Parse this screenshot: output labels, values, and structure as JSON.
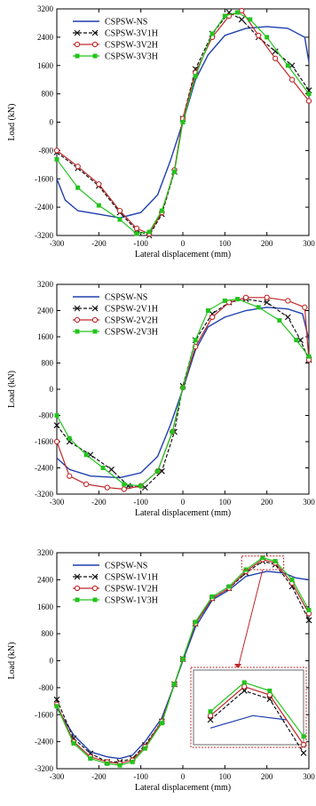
{
  "chart_data": [
    {
      "type": "line",
      "xlabel": "Lateral displacement (mm)",
      "ylabel": "Load (kN)",
      "xlim": [
        -300,
        300
      ],
      "ylim": [
        -3200,
        3200
      ],
      "xticks": [
        "-300",
        "-200",
        "-100",
        "0",
        "100",
        "200",
        "300"
      ],
      "yticks": [
        "3200",
        "2400",
        "1600",
        "800",
        "0",
        "-800",
        "-1600",
        "-2400",
        "-3200"
      ],
      "legend_position": "top-left",
      "series": [
        {
          "name": "CSPSW-NS",
          "color": "#1f3fae",
          "marker": "none",
          "x": [
            -300,
            -280,
            -250,
            -200,
            -150,
            -100,
            -60,
            -30,
            0,
            30,
            60,
            100,
            150,
            200,
            250,
            290,
            300
          ],
          "y": [
            -1600,
            -2200,
            -2500,
            -2600,
            -2700,
            -2550,
            -2050,
            -1100,
            0,
            1200,
            1900,
            2450,
            2650,
            2700,
            2650,
            2400,
            1700
          ]
        },
        {
          "name": "CSPSW-3V1H",
          "color": "#111111",
          "marker": "x",
          "x": [
            -300,
            -250,
            -200,
            -150,
            -110,
            -80,
            -50,
            -20,
            0,
            30,
            70,
            110,
            140,
            180,
            220,
            260,
            300
          ],
          "y": [
            -850,
            -1300,
            -1800,
            -2550,
            -3050,
            -3200,
            -2600,
            -1400,
            100,
            1500,
            2500,
            3100,
            2900,
            2400,
            2000,
            1600,
            900
          ]
        },
        {
          "name": "CSPSW-3V2H",
          "color": "#c0282a",
          "marker": "o",
          "x": [
            -300,
            -250,
            -200,
            -150,
            -110,
            -80,
            -50,
            -20,
            0,
            30,
            70,
            110,
            140,
            180,
            220,
            260,
            300
          ],
          "y": [
            -800,
            -1250,
            -1750,
            -2500,
            -3000,
            -3150,
            -2550,
            -1350,
            100,
            1400,
            2400,
            3000,
            3150,
            2450,
            1800,
            1200,
            600
          ]
        },
        {
          "name": "CSPSW-3V3H",
          "color": "#22c41c",
          "marker": "s",
          "x": [
            -300,
            -250,
            -200,
            -150,
            -110,
            -80,
            -50,
            -20,
            0,
            30,
            70,
            100,
            130,
            160,
            200,
            250,
            300
          ],
          "y": [
            -1050,
            -1850,
            -2350,
            -2750,
            -3150,
            -3100,
            -2500,
            -1400,
            0,
            1300,
            2500,
            3000,
            3100,
            2900,
            2400,
            1600,
            800
          ]
        }
      ]
    },
    {
      "type": "line",
      "xlabel": "Lateral displacement (mm)",
      "ylabel": "Load (kN)",
      "xlim": [
        -300,
        300
      ],
      "ylim": [
        -3200,
        3200
      ],
      "xticks": [
        "-300",
        "-200",
        "-100",
        "0",
        "100",
        "200",
        "300"
      ],
      "yticks": [
        "3200",
        "2400",
        "1600",
        "800",
        "0",
        "-800",
        "-1600",
        "-2400",
        "-3200"
      ],
      "legend_position": "top-left",
      "series": [
        {
          "name": "CSPSW-NS",
          "color": "#1f3fae",
          "marker": "none",
          "x": [
            -300,
            -270,
            -220,
            -150,
            -100,
            -60,
            -30,
            0,
            30,
            60,
            100,
            150,
            200,
            250,
            285,
            300
          ],
          "y": [
            -2100,
            -2450,
            -2650,
            -2700,
            -2550,
            -2050,
            -1100,
            0,
            1200,
            1900,
            2200,
            2400,
            2500,
            2450,
            2300,
            1500
          ]
        },
        {
          "name": "CSPSW-2V1H",
          "color": "#111111",
          "marker": "x",
          "x": [
            -300,
            -270,
            -220,
            -170,
            -130,
            -90,
            -50,
            -20,
            0,
            30,
            70,
            110,
            150,
            200,
            250,
            280,
            300
          ],
          "y": [
            -1100,
            -1600,
            -2000,
            -2450,
            -2950,
            -3000,
            -2500,
            -1300,
            100,
            1500,
            2300,
            2650,
            2750,
            2650,
            2200,
            1500,
            900
          ]
        },
        {
          "name": "CSPSW-2V2H",
          "color": "#c0282a",
          "marker": "o",
          "x": [
            -300,
            -270,
            -230,
            -180,
            -140,
            -100,
            -60,
            -25,
            0,
            30,
            70,
            110,
            150,
            200,
            250,
            290,
            300
          ],
          "y": [
            -1600,
            -2650,
            -2900,
            -3000,
            -3050,
            -2950,
            -2500,
            -1300,
            50,
            1300,
            2200,
            2650,
            2800,
            2800,
            2700,
            2500,
            900
          ]
        },
        {
          "name": "CSPSW-2V3H",
          "color": "#22c41c",
          "marker": "s",
          "x": [
            -300,
            -270,
            -230,
            -190,
            -140,
            -100,
            -60,
            -25,
            0,
            30,
            60,
            100,
            130,
            180,
            230,
            270,
            300
          ],
          "y": [
            -800,
            -1500,
            -2000,
            -2400,
            -2900,
            -2950,
            -2500,
            -1300,
            50,
            1500,
            2400,
            2700,
            2750,
            2500,
            2100,
            1500,
            1000
          ]
        }
      ]
    },
    {
      "type": "line",
      "xlabel": "Lateral displacement (mm)",
      "ylabel": "Load (kN)",
      "xlim": [
        -300,
        300
      ],
      "ylim": [
        -3200,
        3200
      ],
      "xticks": [
        "-300",
        "-200",
        "-100",
        "0",
        "100",
        "200",
        "300"
      ],
      "yticks": [
        "3200",
        "2400",
        "1600",
        "800",
        "0",
        "-800",
        "-1600",
        "-2400",
        "-3200"
      ],
      "legend_position": "top-left",
      "inset": "zoom of peak region",
      "series": [
        {
          "name": "CSPSW-NS",
          "color": "#1f3fae",
          "marker": "none",
          "x": [
            -300,
            -260,
            -220,
            -180,
            -150,
            -120,
            -90,
            -50,
            -20,
            0,
            30,
            70,
            110,
            150,
            200,
            240,
            270,
            300
          ],
          "y": [
            -1400,
            -2200,
            -2700,
            -2850,
            -2900,
            -2800,
            -2400,
            -1700,
            -700,
            0,
            1000,
            1800,
            2100,
            2500,
            2650,
            2600,
            2450,
            2400
          ]
        },
        {
          "name": "CSPSW-1V1H",
          "color": "#111111",
          "marker": "x",
          "x": [
            -300,
            -260,
            -220,
            -180,
            -150,
            -120,
            -90,
            -50,
            -20,
            0,
            30,
            70,
            110,
            150,
            190,
            220,
            260,
            300
          ],
          "y": [
            -1150,
            -2300,
            -2750,
            -3000,
            -3000,
            -2900,
            -2500,
            -1800,
            -700,
            50,
            1100,
            1850,
            2150,
            2600,
            2950,
            2850,
            2200,
            1200
          ]
        },
        {
          "name": "CSPSW-1V2H",
          "color": "#c0282a",
          "marker": "o",
          "x": [
            -300,
            -260,
            -220,
            -180,
            -150,
            -120,
            -90,
            -50,
            -20,
            0,
            30,
            70,
            110,
            150,
            190,
            220,
            260,
            300
          ],
          "y": [
            -1300,
            -2400,
            -2850,
            -3000,
            -3050,
            -2950,
            -2550,
            -1800,
            -700,
            50,
            1100,
            1850,
            2150,
            2650,
            3000,
            2900,
            2300,
            1400
          ]
        },
        {
          "name": "CSPSW-1V3H",
          "color": "#22c41c",
          "marker": "s",
          "x": [
            -300,
            -260,
            -220,
            -180,
            -150,
            -120,
            -90,
            -50,
            -20,
            0,
            30,
            70,
            110,
            150,
            190,
            220,
            260,
            300
          ],
          "y": [
            -1350,
            -2450,
            -2900,
            -3050,
            -3100,
            -3000,
            -2600,
            -1850,
            -700,
            50,
            1150,
            1900,
            2200,
            2700,
            3050,
            2950,
            2400,
            1500
          ]
        }
      ]
    }
  ]
}
